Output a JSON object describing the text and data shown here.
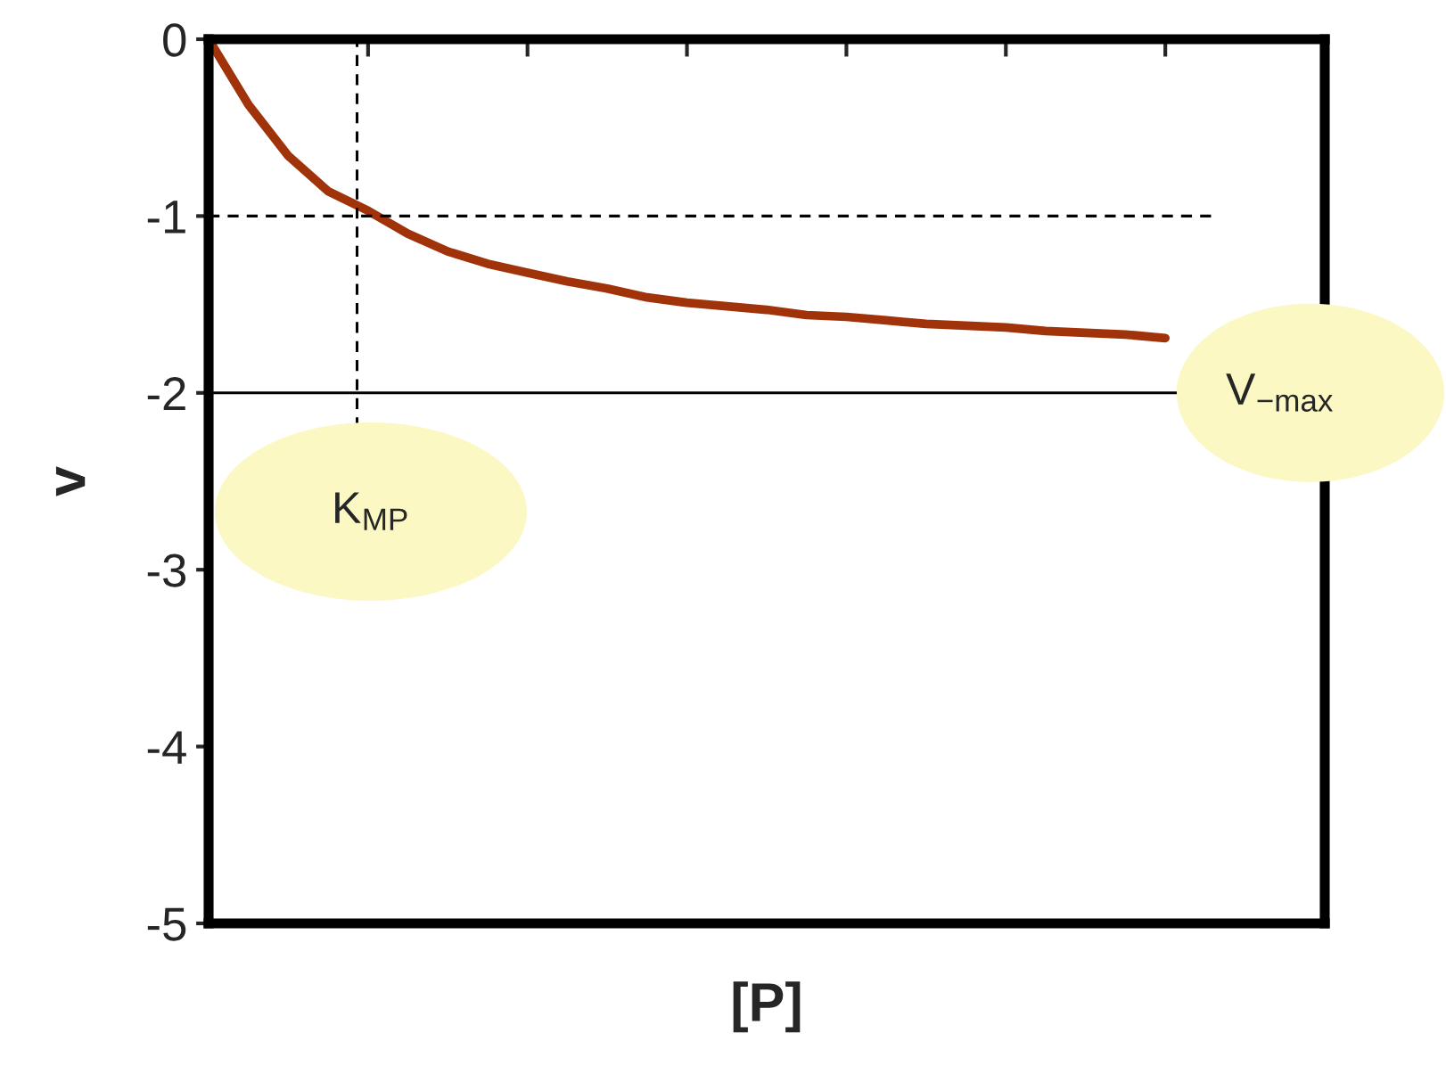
{
  "chart_data": {
    "type": "line",
    "xlabel": "[P]",
    "ylabel": "v",
    "categories": [
      null,
      null,
      null,
      null,
      null,
      null,
      null,
      null,
      null,
      null,
      null,
      null,
      null,
      null,
      null,
      null,
      null,
      null,
      null,
      null,
      null,
      null,
      null,
      null,
      null,
      null,
      null,
      null,
      null
    ],
    "series": [
      {
        "color": "#a0330a",
        "values": [
          0,
          -0.37,
          -0.66,
          -0.86,
          -0.97,
          -1.1,
          -1.2,
          -1.27,
          -1.32,
          -1.37,
          -1.41,
          -1.46,
          -1.49,
          -1.51,
          -1.53,
          -1.56,
          -1.57,
          -1.59,
          -1.61,
          -1.62,
          -1.63,
          -1.65,
          -1.66,
          -1.67,
          -1.69,
          null,
          null,
          null,
          null
        ]
      }
    ],
    "ylim": [
      -5,
      0
    ],
    "yticks": [
      -5,
      -4,
      -3,
      -2,
      -1,
      0
    ],
    "ref_lines": [
      {
        "axis": "y",
        "value": -1,
        "line_style": "dashed",
        "color": "#000000"
      },
      {
        "axis": "y",
        "value": -2,
        "line_style": "solid",
        "color": "#000000",
        "label": "V$_{−max}$"
      }
    ],
    "annotations": [
      "K$_{MP}$"
    ],
    "grid": false,
    "legend": false,
    "marker": "none",
    "line_style": "solid"
  }
}
